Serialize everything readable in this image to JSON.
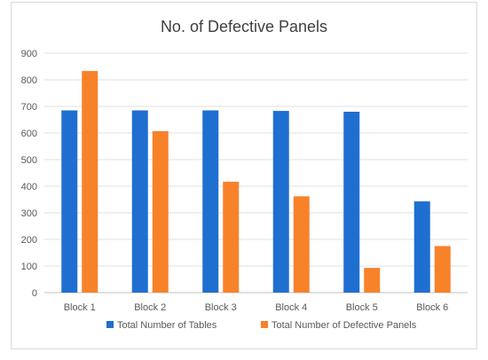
{
  "chart_data": {
    "type": "bar",
    "title": "No. of Defective Panels",
    "xlabel": "",
    "ylabel": "",
    "categories": [
      "Block 1",
      "Block 2",
      "Block 3",
      "Block 4",
      "Block 5",
      "Block 6"
    ],
    "series": [
      {
        "name": "Total Number of Tables",
        "color": "#1f6fd0",
        "values": [
          685,
          685,
          685,
          683,
          680,
          343
        ]
      },
      {
        "name": "Total Number of Defective Panels",
        "color": "#f7822a",
        "values": [
          833,
          607,
          417,
          362,
          93,
          175
        ]
      }
    ],
    "ylim": [
      0,
      900
    ],
    "yticks": [
      0,
      100,
      200,
      300,
      400,
      500,
      600,
      700,
      800,
      900
    ],
    "grid": true,
    "legend_position": "bottom"
  }
}
